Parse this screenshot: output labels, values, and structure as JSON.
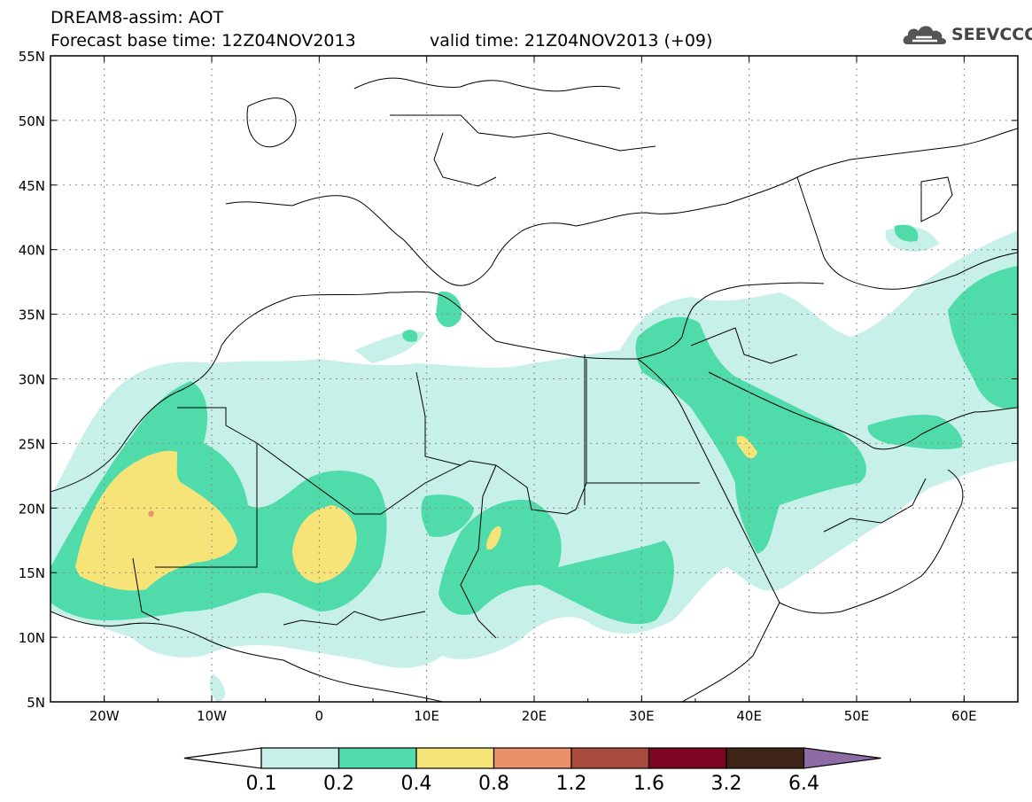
{
  "header": {
    "title": "DREAM8-assim: AOT",
    "base_time": "Forecast base time: 12Z04NOV2013",
    "valid_time": "valid time: 21Z04NOV2013 (+09)",
    "logo_text": "SEEVCCC"
  },
  "map": {
    "lat_labels": [
      "55N",
      "50N",
      "45N",
      "40N",
      "35N",
      "30N",
      "25N",
      "20N",
      "15N",
      "10N",
      "5N"
    ],
    "lon_labels": [
      "20W",
      "10W",
      "0",
      "10E",
      "20E",
      "30E",
      "40E",
      "50E",
      "60E"
    ],
    "lat_range": [
      5,
      55
    ],
    "lon_range": [
      -25,
      65
    ]
  },
  "colorbar": {
    "labels": [
      "0.1",
      "0.2",
      "0.4",
      "0.8",
      "1.2",
      "1.6",
      "3.2",
      "6.4"
    ],
    "colors": [
      "#ffffff",
      "#c7f0e8",
      "#4fdcaa",
      "#f7e479",
      "#ea916a",
      "#a94b3d",
      "#7e0622",
      "#3d2417",
      "#8f6ba6"
    ]
  }
}
